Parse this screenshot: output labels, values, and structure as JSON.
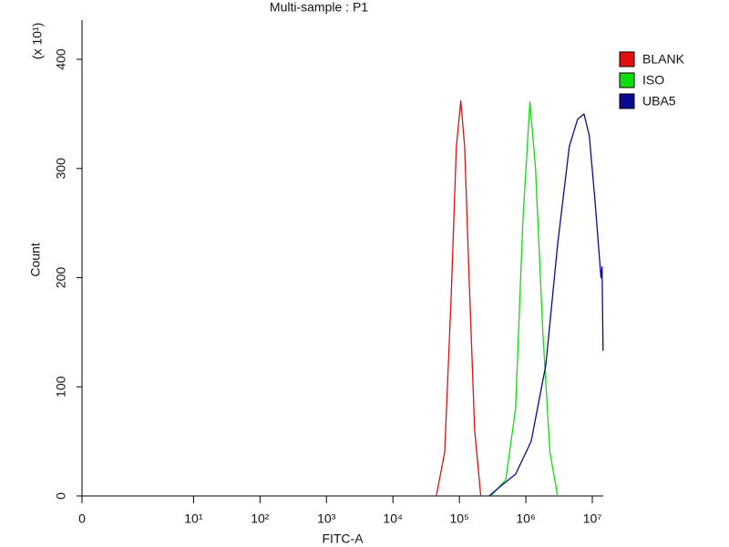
{
  "chart_data": {
    "type": "line",
    "title": "Multi-sample : P1",
    "xlabel": "FITC-A",
    "ylabel": "Count",
    "ymultiplier": "(x 10¹)",
    "xscale": "biexponential",
    "xlim": [
      0,
      14600000
    ],
    "xticks": [
      0,
      {
        "value": 10,
        "label": "10¹"
      },
      {
        "value": 100,
        "label": "10²"
      },
      {
        "value": 1000,
        "label": "10³"
      },
      {
        "value": 10000,
        "label": "10⁴"
      },
      {
        "value": 100000,
        "label": "10⁵"
      },
      {
        "value": 1000000,
        "label": "10⁶"
      },
      {
        "value": 10000000,
        "label": "10⁷"
      }
    ],
    "ylim": [
      0,
      436
    ],
    "yticks": [
      0,
      100,
      200,
      300,
      400
    ],
    "legend": "right",
    "series": [
      {
        "name": "BLANK",
        "color": "#e01010",
        "x": [
          45000,
          60000,
          75000,
          90000,
          105000,
          120000,
          140000,
          170000,
          210000
        ],
        "values": [
          0,
          40,
          180,
          320,
          362,
          320,
          200,
          60,
          0
        ]
      },
      {
        "name": "ISO",
        "color": "#10dd10",
        "x": [
          300000,
          500000,
          700000,
          900000,
          1150000,
          1400000,
          1800000,
          2300000,
          3000000
        ],
        "values": [
          0,
          15,
          80,
          250,
          361,
          300,
          150,
          40,
          0
        ]
      },
      {
        "name": "UBA5",
        "color": "#0a0a90",
        "x": [
          280000,
          400000,
          700000,
          1200000,
          2000000,
          3000000,
          4500000,
          6000000,
          7500000,
          9000000,
          11000000,
          13500000,
          14000000,
          14500000
        ],
        "values": [
          0,
          8,
          20,
          50,
          120,
          230,
          320,
          345,
          350,
          330,
          270,
          200,
          210,
          133
        ]
      }
    ]
  }
}
